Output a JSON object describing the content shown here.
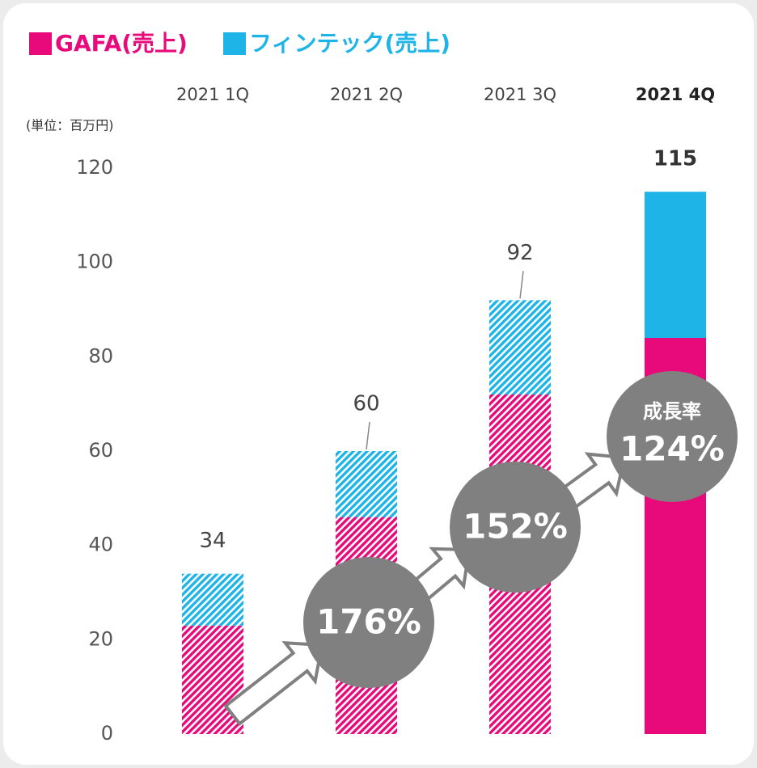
{
  "chart_data": {
    "type": "stacked_bar",
    "unit_label": "(単位：百万円)",
    "categories": [
      "2021 1Q",
      "2021 2Q",
      "2021 3Q",
      "2021 4Q"
    ],
    "highlight_category": 3,
    "bar_styles": [
      "hatched",
      "hatched",
      "hatched",
      "solid"
    ],
    "series": [
      {
        "name": "GAFA(売上)",
        "color": "#e8097a",
        "values": [
          23,
          46,
          72,
          84
        ]
      },
      {
        "name": "フィンテック(売上)",
        "color": "#1eb4e8",
        "values": [
          11,
          14,
          20,
          31
        ]
      }
    ],
    "total_labels": [
      34,
      60,
      92,
      115
    ],
    "growth": {
      "label": "成長率",
      "values": [
        176,
        152,
        124
      ],
      "value_labels": [
        "176%",
        "152%",
        "124%"
      ]
    },
    "ylim": [
      0,
      120
    ],
    "yticks": [
      0,
      20,
      40,
      60,
      80,
      100,
      120
    ]
  }
}
